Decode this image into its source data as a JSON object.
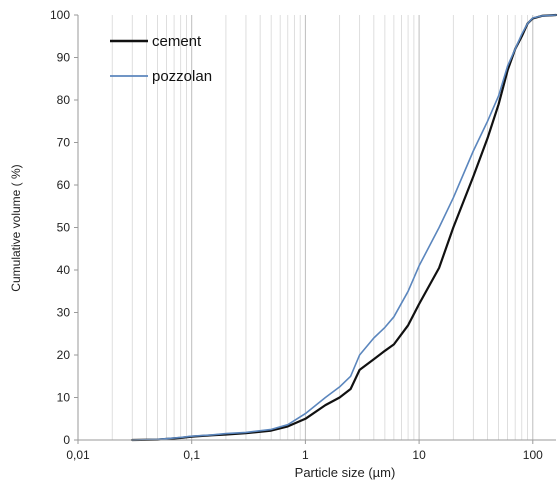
{
  "chart_data": {
    "type": "line",
    "x_scale": "log",
    "xlim": [
      0.01,
      160
    ],
    "ylim": [
      0,
      100
    ],
    "x_ticks": [
      0.01,
      0.1,
      1,
      10,
      100
    ],
    "x_tick_labels": [
      "0,01",
      "0,1",
      "1",
      "10",
      "100"
    ],
    "y_ticks": [
      0,
      10,
      20,
      30,
      40,
      50,
      60,
      70,
      80,
      90,
      100
    ],
    "y_tick_labels": [
      "0",
      "10",
      "20",
      "30",
      "40",
      "50",
      "60",
      "70",
      "80",
      "90",
      "100"
    ],
    "xlabel": "Particle size   (µm)",
    "ylabel": "Cumulative volume ( %)",
    "grid": {
      "x_minor": true,
      "y_major": false
    },
    "legend": {
      "placement": "top-left",
      "entries": [
        "cement",
        "pozzolan"
      ]
    },
    "series": [
      {
        "name": "cement",
        "color": "#111111",
        "x": [
          0.03,
          0.05,
          0.08,
          0.1,
          0.15,
          0.2,
          0.3,
          0.5,
          0.7,
          1,
          1.5,
          2,
          2.5,
          3,
          4,
          5,
          6,
          8,
          10,
          15,
          20,
          30,
          40,
          50,
          60,
          70,
          80,
          90,
          100,
          120,
          160
        ],
        "y": [
          0,
          0.1,
          0.5,
          0.8,
          1.1,
          1.3,
          1.6,
          2.2,
          3.2,
          5.0,
          8.2,
          10.0,
          12.0,
          16.5,
          19.0,
          21.0,
          22.5,
          27.0,
          32.0,
          40.5,
          50.0,
          62.0,
          71.0,
          79.0,
          87.0,
          92.0,
          95.0,
          98.0,
          99.2,
          99.8,
          100
        ]
      },
      {
        "name": "pozzolan",
        "color": "#5b86bd",
        "x": [
          0.03,
          0.05,
          0.08,
          0.1,
          0.15,
          0.2,
          0.3,
          0.5,
          0.7,
          1,
          1.5,
          2,
          2.5,
          3,
          4,
          5,
          6,
          8,
          10,
          15,
          20,
          30,
          40,
          50,
          60,
          70,
          80,
          90,
          100,
          120,
          160
        ],
        "y": [
          0,
          0.15,
          0.6,
          0.9,
          1.2,
          1.5,
          1.8,
          2.5,
          3.6,
          6.2,
          10.0,
          12.5,
          15.0,
          20.0,
          24.0,
          26.5,
          29.0,
          35.0,
          41.0,
          50.0,
          57.0,
          68.0,
          75.0,
          81.0,
          88.0,
          92.0,
          95.5,
          98.0,
          99.3,
          99.8,
          100
        ]
      }
    ]
  }
}
